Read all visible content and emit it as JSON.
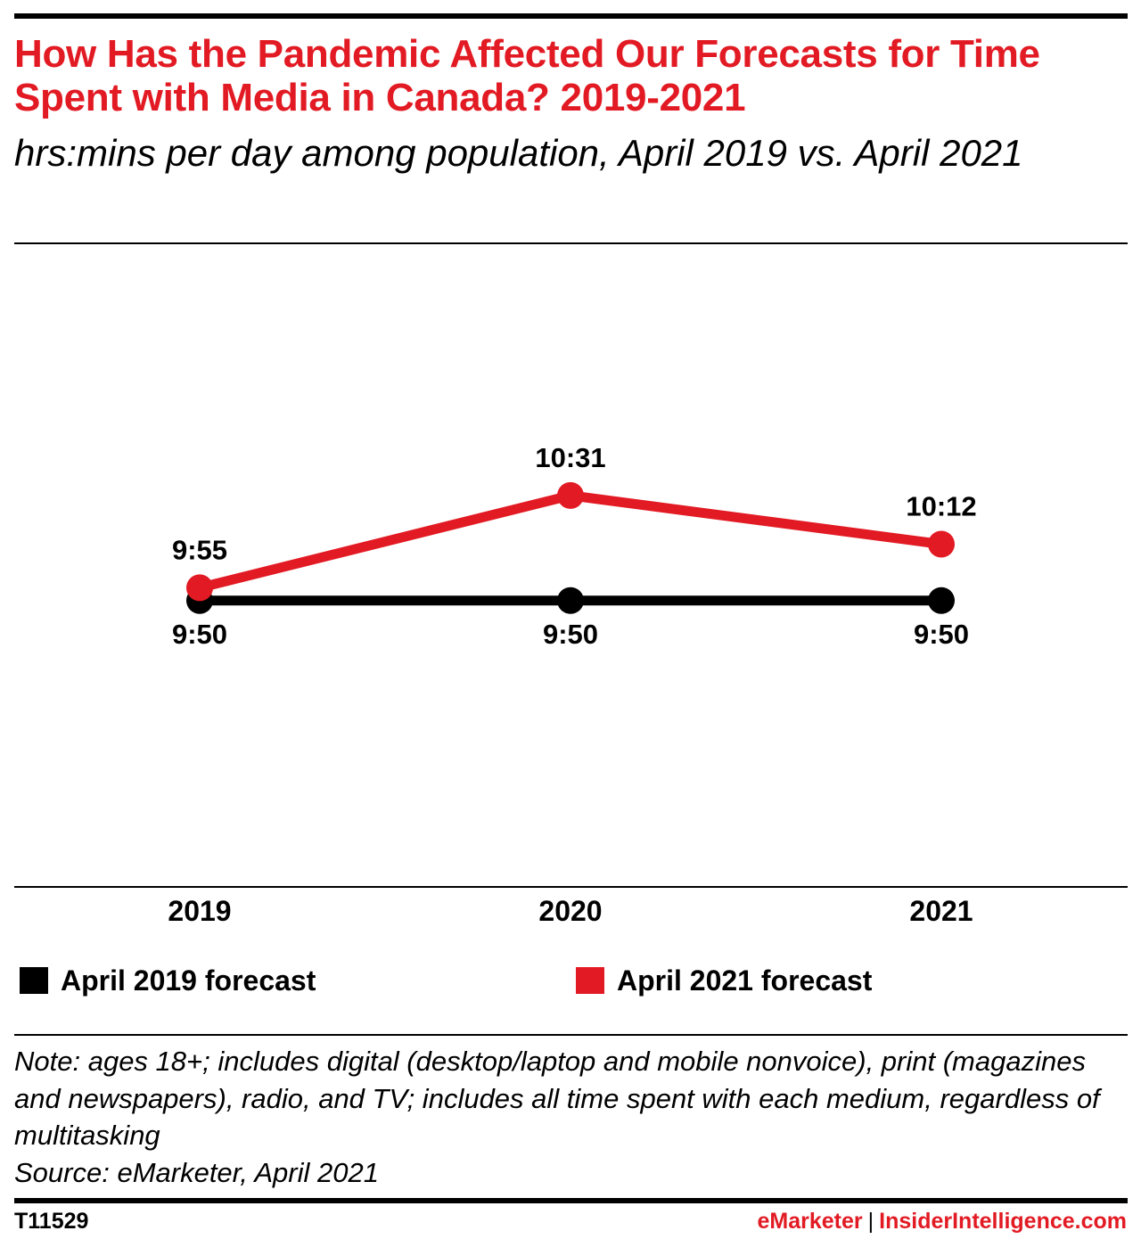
{
  "header": {
    "title": "How Has the Pandemic Affected Our Forecasts for Time Spent with Media in Canada? 2019-2021",
    "subtitle": "hrs:mins per day among population, April 2019 vs. April 2021"
  },
  "chart_data": {
    "type": "line",
    "title": "How Has the Pandemic Affected Our Forecasts for Time Spent with Media in Canada? 2019-2021",
    "subtitle": "hrs:mins per day among population, April 2019 vs. April 2021",
    "xlabel": "",
    "ylabel": "",
    "categories": [
      "2019",
      "2020",
      "2021"
    ],
    "ylim_minutes": [
      480,
      720
    ],
    "grid": false,
    "legend_position": "bottom",
    "series": [
      {
        "name": "April 2019 forecast",
        "color": "#000000",
        "values_minutes": [
          590,
          590,
          590
        ],
        "labels": [
          "9:50",
          "9:50",
          "9:50"
        ],
        "label_position": "below"
      },
      {
        "name": "April 2021 forecast",
        "color": "#e21a23",
        "values_minutes": [
          595,
          631,
          612
        ],
        "labels": [
          "9:55",
          "10:31",
          "10:12"
        ],
        "label_position": "above"
      }
    ]
  },
  "legend": {
    "items": [
      {
        "label": "April 2019 forecast",
        "color": "#000000"
      },
      {
        "label": "April 2021 forecast",
        "color": "#e21a23"
      }
    ]
  },
  "footer": {
    "note": "Note: ages 18+; includes digital (desktop/laptop and mobile nonvoice), print (magazines and newspapers), radio, and TV; includes all time spent with each medium, regardless of multitasking",
    "source": "Source: eMarketer, April 2021",
    "chart_id": "T11529",
    "brand_left": "eMarketer",
    "brand_sep": "|",
    "brand_right": "InsiderIntelligence.com"
  }
}
